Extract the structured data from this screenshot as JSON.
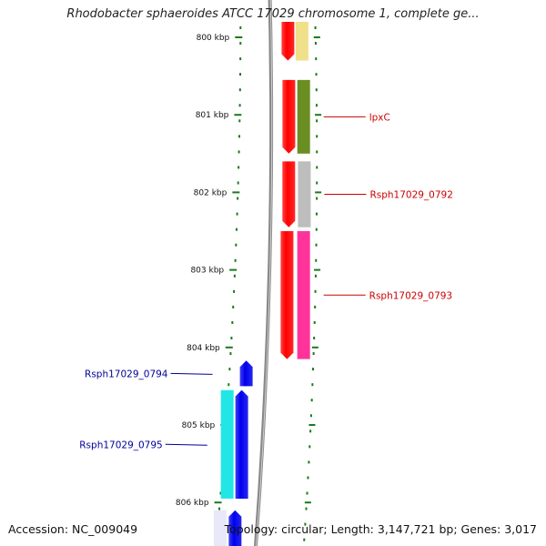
{
  "header": {
    "title": "Rhodobacter sphaeroides ATCC 17029 chromosome 1, complete ge..."
  },
  "footer": {
    "accession": "Accession: NC_009049",
    "summary": "Topology: circular; Length: 3,147,721 bp; Genes: 3,017"
  },
  "scale": {
    "ticks": [
      {
        "kbp": 800,
        "label": "800 kbp"
      },
      {
        "kbp": 801,
        "label": "801 kbp"
      },
      {
        "kbp": 802,
        "label": "802 kbp"
      },
      {
        "kbp": 803,
        "label": "803 kbp"
      },
      {
        "kbp": 804,
        "label": "804 kbp"
      },
      {
        "kbp": 805,
        "label": "805 kbp"
      },
      {
        "kbp": 806,
        "label": "806 kbp"
      }
    ]
  },
  "genes": [
    {
      "id": "g0",
      "label": "",
      "strand": "+",
      "start_kbp": 799.8,
      "end_kbp": 800.3,
      "cog_color": "#f0e08a"
    },
    {
      "id": "g1",
      "label": "lpxC",
      "strand": "+",
      "start_kbp": 800.55,
      "end_kbp": 801.5,
      "cog_color": "#6b8e23"
    },
    {
      "id": "g2",
      "label": "Rsph17029_0792",
      "strand": "+",
      "start_kbp": 801.6,
      "end_kbp": 802.45,
      "cog_color": "#bdbdbd"
    },
    {
      "id": "g3",
      "label": "Rsph17029_0793",
      "strand": "+",
      "start_kbp": 802.5,
      "end_kbp": 804.15,
      "cog_color": "#ff3399"
    },
    {
      "id": "g4",
      "label": "Rsph17029_0794",
      "strand": "-",
      "start_kbp": 804.17,
      "end_kbp": 804.5,
      "cog_color": ""
    },
    {
      "id": "g5",
      "label": "Rsph17029_0795",
      "strand": "-",
      "start_kbp": 804.55,
      "end_kbp": 805.95,
      "cog_color": "#22e6e6"
    },
    {
      "id": "g6",
      "label": "",
      "strand": "-",
      "start_kbp": 806.1,
      "end_kbp": 806.6,
      "cog_color": "#e8e8f8"
    }
  ],
  "colors": {
    "forward_strand": "#ff0000",
    "reverse_strand": "#0000ee",
    "backbone": "#888888",
    "tick_marks": "#1a7a1a",
    "forward_label": "#cc0000",
    "reverse_label": "#000099"
  }
}
